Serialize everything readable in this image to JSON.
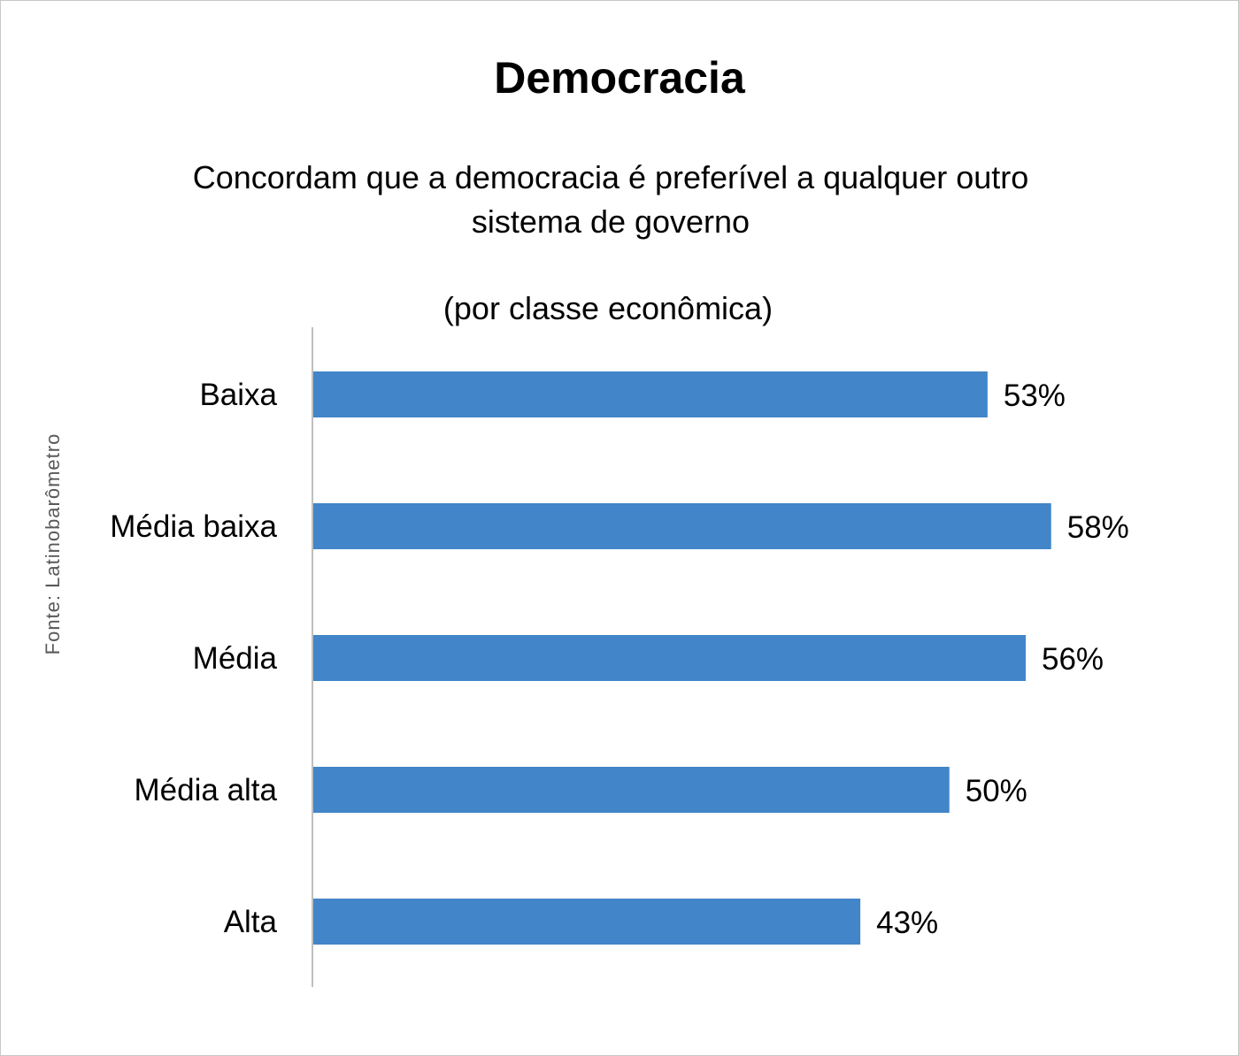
{
  "chart_data": {
    "type": "bar",
    "orientation": "horizontal",
    "title": "Democracia",
    "subtitle": "Concordam que a democracia é preferível a qualquer outro sistema de governo",
    "subtitle2": "(por classe econômica)",
    "source": "Fonte: Latinobarômetro",
    "categories": [
      "Baixa",
      "Média baixa",
      "Média",
      "Média alta",
      "Alta"
    ],
    "values": [
      53,
      58,
      56,
      50,
      43
    ],
    "value_labels": [
      "53%",
      "58%",
      "56%",
      "50%",
      "43%"
    ],
    "xlim": [
      0,
      64
    ],
    "bar_color": "#4285c9",
    "axis_color": "#bfbfbf",
    "grid": false,
    "legend": "none"
  }
}
